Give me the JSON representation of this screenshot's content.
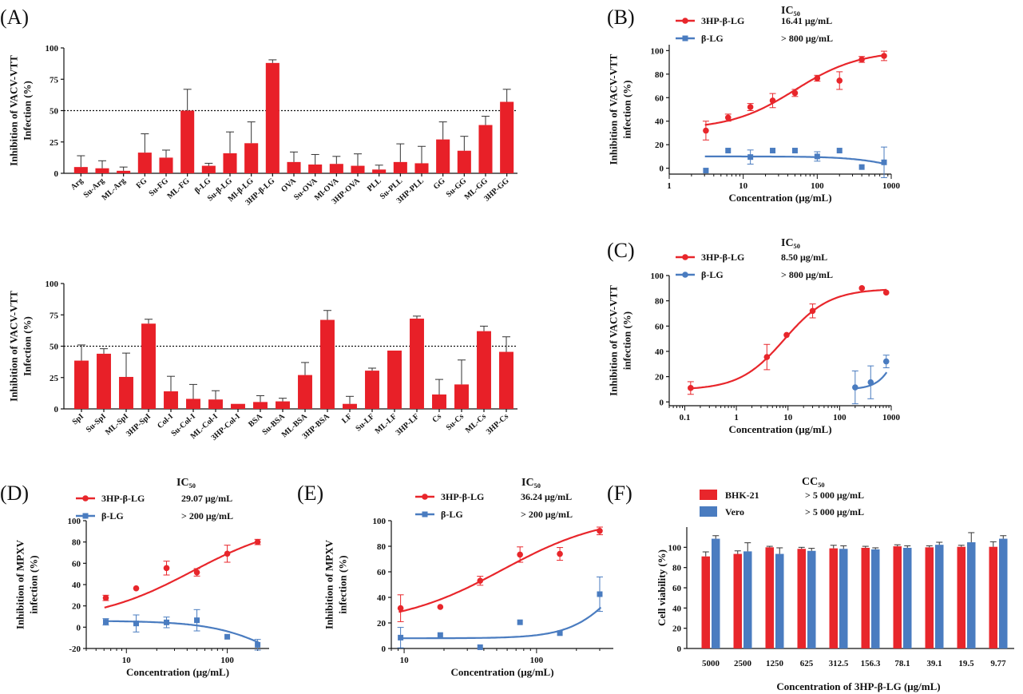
{
  "colors": {
    "red": "#e8262b",
    "blue": "#4a7cc0",
    "bar_red": "#e82028"
  },
  "chart_data": [
    {
      "id": "A1",
      "panel": "(A)",
      "type": "bar",
      "ylabel": [
        "Inhibition of VACV-VTT",
        "Infection (%)"
      ],
      "ylim": [
        0,
        100
      ],
      "yticks": [
        0,
        25,
        50,
        75,
        100
      ],
      "ref_line": 50,
      "categories": [
        "Arg",
        "Su-Arg",
        "ML-Arg",
        "FG",
        "Su-FG",
        "ML-FG",
        "β-LG",
        "Su-β-LG",
        "Ml-β-LG",
        "3HP-β-LG",
        "OVA",
        "Su-OVA",
        "Ml-OVA",
        "3HP-OVA",
        "PLL",
        "Su-PLL",
        "3HP-PLL",
        "GG",
        "Su-GG",
        "ML-GG",
        "3HP-GG"
      ],
      "values": [
        5,
        4,
        2,
        16.5,
        12.5,
        50,
        6,
        16,
        24,
        88,
        9,
        7,
        7.5,
        6,
        3,
        9,
        8,
        27,
        18,
        38.5,
        57
      ],
      "errors": [
        9,
        6,
        3,
        15,
        6,
        17,
        2,
        17,
        17,
        2.5,
        8,
        8,
        6,
        9.5,
        3.5,
        14.5,
        13.5,
        14,
        11.5,
        7,
        10
      ]
    },
    {
      "id": "A2",
      "type": "bar",
      "ylabel": [
        "Inhibition of VACV-VTT",
        "Infection (%)"
      ],
      "ylim": [
        0,
        100
      ],
      "yticks": [
        0,
        25,
        50,
        75,
        100
      ],
      "ref_line": 50,
      "categories": [
        "SpI",
        "Su-SpI",
        "ML-SpI",
        "3HP-SpI",
        "Col-I",
        "Su-Col-I",
        "ML-Col-I",
        "3HP-Col-I",
        "BSA",
        "Su-BSA",
        "ML-BSA",
        "3HP-BSA",
        "LF",
        "Su-LF",
        "ML-LF",
        "3HP-LF",
        "Cs",
        "Su-Cs",
        "ML-Cs",
        "3HP-Cs"
      ],
      "values": [
        38.5,
        44,
        25.5,
        68,
        14,
        8,
        7.5,
        4,
        5.5,
        6,
        27,
        71,
        4,
        30.5,
        46.5,
        72,
        11.5,
        19.5,
        62,
        45.5
      ],
      "errors": [
        12.5,
        4,
        19,
        3.5,
        12,
        11.5,
        7,
        0,
        5,
        2.5,
        10,
        7.5,
        6,
        2,
        0,
        2,
        12,
        19.5,
        4,
        12
      ]
    },
    {
      "id": "B",
      "panel": "(B)",
      "type": "scatter",
      "xlabel": "Concentration (μg/mL)",
      "ylabel": [
        "Inhibition of VACV-VTT",
        "infection (%)"
      ],
      "xscale": "log",
      "xlim": [
        1,
        1000
      ],
      "ylim": [
        -5,
        105
      ],
      "xticks": [
        1,
        10,
        100,
        1000
      ],
      "xticklabels": [
        "1",
        "10",
        "100",
        "1000"
      ],
      "yticks": [
        0,
        20,
        40,
        60,
        80,
        100
      ],
      "legend_title": "IC₅₀",
      "series": [
        {
          "name": "3HP-β-LG",
          "ic50": "16.41 μg/mL",
          "color": "red",
          "marker": "circle",
          "x": [
            3.13,
            6.25,
            12.5,
            25,
            50,
            100,
            200,
            400,
            800
          ],
          "y": [
            32,
            43,
            52,
            57.5,
            64,
            76.5,
            74.5,
            92.5,
            95.5
          ],
          "err": [
            8,
            3,
            3,
            6,
            3,
            2.5,
            7.5,
            2.5,
            4
          ],
          "fit": {
            "type": "hill",
            "bottom": 33,
            "top": 100,
            "ec50": 50,
            "hill": 1.0
          }
        },
        {
          "name": "β-LG",
          "ic50": "> 800 μg/mL",
          "color": "blue",
          "marker": "square",
          "x": [
            3.13,
            6.25,
            12.5,
            25,
            50,
            100,
            200,
            400,
            800
          ],
          "y": [
            -2,
            15,
            9.5,
            15,
            15,
            10,
            15,
            1,
            5
          ],
          "err": [
            0,
            0,
            6,
            0,
            0,
            4,
            0,
            0,
            13
          ],
          "fit": {
            "type": "hill",
            "bottom": 10,
            "top": -10,
            "ec50": 1500,
            "hill": 1.3
          }
        }
      ]
    },
    {
      "id": "C",
      "panel": "(C)",
      "type": "scatter",
      "xlabel": "Concentration (μg/mL)",
      "ylabel": [
        "Inhibition of VACV-VTT",
        "infection (%)"
      ],
      "xscale": "log",
      "xlim": [
        0.05,
        1000
      ],
      "ylim": [
        -3,
        100
      ],
      "xticks": [
        0.1,
        1,
        10,
        100,
        1000
      ],
      "xticklabels": [
        "0.1",
        "1",
        "10",
        "100",
        "1000"
      ],
      "yticks": [
        0,
        20,
        40,
        60,
        80,
        100
      ],
      "legend_title": "IC₅₀",
      "series": [
        {
          "name": "3HP-β-LG",
          "ic50": "8.50 μg/mL",
          "color": "red",
          "marker": "circle",
          "x": [
            0.13,
            3.9,
            9.4,
            30,
            270,
            800
          ],
          "y": [
            11,
            35.5,
            53,
            72,
            90,
            86.5
          ],
          "err": [
            5,
            10,
            0,
            5.5,
            0,
            0
          ],
          "fit": {
            "type": "hill",
            "bottom": 9.5,
            "top": 89.5,
            "ec50": 8.5,
            "hill": 1.0
          }
        },
        {
          "name": "β-LG",
          "ic50": "> 800 μg/mL",
          "color": "blue",
          "marker": "circle",
          "x": [
            200,
            400,
            800
          ],
          "y": [
            11.5,
            15.5,
            32
          ],
          "err": [
            13,
            13,
            5
          ],
          "fit": {
            "type": "hill",
            "bottom": 10,
            "top": 100,
            "ec50": 1800,
            "hill": 2.2,
            "xmin": 200
          }
        }
      ]
    },
    {
      "id": "D",
      "panel": "(D)",
      "type": "scatter",
      "xlabel": "Concentration (μg/mL)",
      "ylabel": [
        "Inhibition of MPXV",
        "infection (%)"
      ],
      "xscale": "log",
      "xlim": [
        4,
        260
      ],
      "ylim": [
        -20,
        100
      ],
      "xticks": [
        10,
        100
      ],
      "xticklabels": [
        "10",
        "100"
      ],
      "yticks": [
        -20,
        0,
        20,
        40,
        60,
        80,
        100
      ],
      "legend_title": "IC₅₀",
      "series": [
        {
          "name": "3HP-β-LG",
          "ic50": "29.07 μg/mL",
          "color": "red",
          "marker": "circle",
          "x": [
            6.25,
            12.5,
            25,
            50,
            100,
            200
          ],
          "y": [
            27.5,
            36.5,
            55.5,
            51.5,
            69,
            80
          ],
          "err": [
            2.5,
            0,
            6.5,
            3.5,
            8,
            2.5
          ],
          "fit": {
            "type": "hill",
            "bottom": 5,
            "top": 100,
            "ec50": 45,
            "hill": 0.9
          }
        },
        {
          "name": "β-LG",
          "ic50": "> 200 μg/mL",
          "color": "blue",
          "marker": "square",
          "x": [
            6.25,
            12.5,
            25,
            50,
            100,
            200
          ],
          "y": [
            5,
            3.5,
            4.5,
            6.5,
            -9,
            -16.5
          ],
          "err": [
            3,
            8,
            5,
            10,
            0,
            5
          ],
          "fit": {
            "type": "hill",
            "bottom": 6,
            "top": -60,
            "ec50": 380,
            "hill": 1.3
          }
        }
      ]
    },
    {
      "id": "E",
      "panel": "(E)",
      "type": "scatter",
      "xlabel": "Concentration (μg/mL)",
      "ylabel": [
        "Inhibition of  MPXV",
        "infection  (%)"
      ],
      "xscale": "log",
      "xlim": [
        8,
        380
      ],
      "ylim": [
        0,
        100
      ],
      "xticks": [
        10,
        100
      ],
      "xticklabels": [
        "10",
        "100"
      ],
      "yticks": [
        0,
        20,
        40,
        60,
        80,
        100
      ],
      "legend_title": "IC₅₀",
      "series": [
        {
          "name": "3HP-β-LG",
          "ic50": "36.24 μg/mL",
          "color": "red",
          "marker": "circle",
          "x": [
            9.4,
            18.75,
            37.5,
            75,
            150,
            300
          ],
          "y": [
            31.5,
            32.5,
            53,
            73.5,
            74,
            92
          ],
          "err": [
            10.5,
            0,
            3.5,
            6,
            5,
            3
          ],
          "fit": {
            "type": "hill",
            "bottom": 18,
            "top": 105,
            "ec50": 55,
            "hill": 1.1
          }
        },
        {
          "name": "β-LG",
          "ic50": "> 200 μg/mL",
          "color": "blue",
          "marker": "square",
          "x": [
            9.4,
            18.75,
            37.5,
            75,
            150,
            300
          ],
          "y": [
            8.5,
            10.5,
            1,
            20.5,
            12,
            42.5
          ],
          "err": [
            8,
            0,
            0,
            0,
            0,
            13.5
          ],
          "fit": {
            "type": "hill",
            "bottom": 8,
            "top": 100,
            "ec50": 480,
            "hill": 2.3
          }
        }
      ]
    },
    {
      "id": "F",
      "panel": "(F)",
      "type": "bar",
      "xlabel": "Concentration of 3HP-β-LG (μg/mL)",
      "ylabel": [
        "Cell viability (%)"
      ],
      "ylim": [
        0,
        120
      ],
      "yticks": [
        0,
        20,
        40,
        60,
        80,
        100
      ],
      "legend_title": "CC₅₀",
      "categories": [
        "5000",
        "2500",
        "1250",
        "625",
        "312.5",
        "156.3",
        "78.1",
        "39.1",
        "19.5",
        "9.77"
      ],
      "series": [
        {
          "name": "BHK-21",
          "cc50": "> 5 000 μg/mL",
          "color": "red",
          "values": [
            91,
            93.5,
            100,
            98.5,
            99,
            99.5,
            101,
            100,
            100.5,
            100.5
          ],
          "errors": [
            4.5,
            3,
            1,
            1.5,
            3,
            1.5,
            1.5,
            1.5,
            1.5,
            5
          ]
        },
        {
          "name": "Vero",
          "cc50": "> 5 000 μg/mL",
          "color": "blue",
          "values": [
            108.5,
            96,
            93.5,
            96.5,
            98.5,
            98,
            99.5,
            102.5,
            105,
            108.5
          ],
          "errors": [
            3,
            8.5,
            6,
            2.5,
            3,
            1.5,
            2,
            2.5,
            9.5,
            3
          ]
        }
      ]
    }
  ]
}
